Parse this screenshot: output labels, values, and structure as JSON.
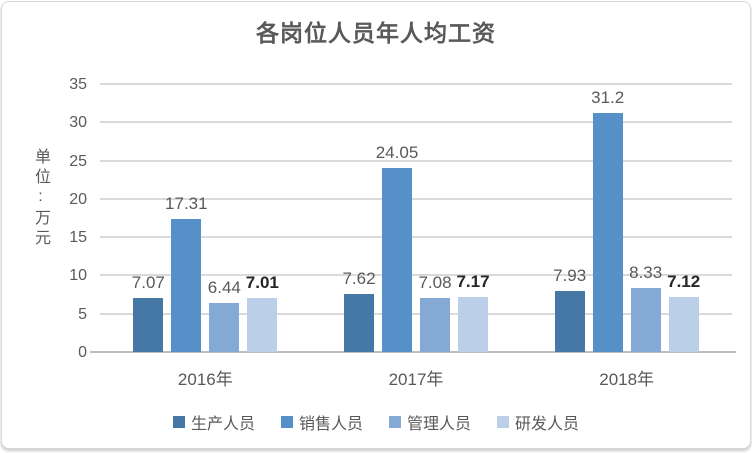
{
  "chart_data": {
    "type": "bar",
    "title": "各岗位人员年人均工资",
    "ylabel": "单位:万元",
    "xlabel": "",
    "categories": [
      "2016年",
      "2017年",
      "2018年"
    ],
    "series": [
      {
        "name": "生产人员",
        "color": "#4678A6",
        "values": [
          7.07,
          7.62,
          7.93
        ],
        "label_bold": false
      },
      {
        "name": "销售人员",
        "color": "#5590C8",
        "values": [
          17.31,
          24.05,
          31.2
        ],
        "label_bold": false
      },
      {
        "name": "管理人员",
        "color": "#84A9D5",
        "values": [
          6.44,
          7.08,
          8.33
        ],
        "label_bold": false
      },
      {
        "name": "研发人员",
        "color": "#BCCFE8",
        "values": [
          7.01,
          7.17,
          7.12
        ],
        "label_bold": true
      }
    ],
    "yticks": [
      0,
      5,
      10,
      15,
      20,
      25,
      30,
      35
    ],
    "ylim": [
      0,
      35
    ],
    "grid": true,
    "legend_position": "bottom",
    "data_labels": true
  }
}
